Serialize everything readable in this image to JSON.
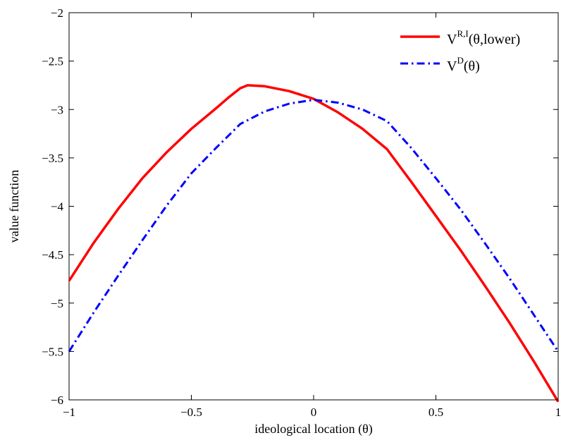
{
  "chart_data": {
    "type": "line",
    "title": "",
    "xlabel": "ideological location (θ)",
    "ylabel": "value function",
    "xlim": [
      -1,
      1
    ],
    "ylim": [
      -6,
      -2
    ],
    "xticks": [
      -1,
      -0.5,
      0,
      0.5,
      1
    ],
    "xtick_labels": [
      "−1",
      "−0.5",
      "0",
      "0.5",
      "1"
    ],
    "yticks": [
      -6,
      -5.5,
      -5,
      -4.5,
      -4,
      -3.5,
      -3,
      -2.5,
      -2
    ],
    "ytick_labels": [
      "−6",
      "−5.5",
      "−5",
      "−4.5",
      "−4",
      "−3.5",
      "−3",
      "−2.5",
      "−2"
    ],
    "grid": false,
    "legend_position": "top-right",
    "series": [
      {
        "name": "V^{R,I}(θ,lower)",
        "legend_base": "V",
        "legend_sup": "R,I",
        "legend_tail": "(θ,lower)",
        "color": "#ff0000",
        "style": "solid",
        "x": [
          -1,
          -0.9,
          -0.8,
          -0.7,
          -0.6,
          -0.5,
          -0.4,
          -0.35,
          -0.3,
          -0.27,
          -0.2,
          -0.1,
          0,
          0.1,
          0.2,
          0.3,
          0.4,
          0.5,
          0.6,
          0.7,
          0.8,
          0.9,
          1
        ],
        "y": [
          -4.77,
          -4.38,
          -4.03,
          -3.71,
          -3.44,
          -3.2,
          -2.99,
          -2.88,
          -2.78,
          -2.75,
          -2.76,
          -2.81,
          -2.89,
          -3.03,
          -3.2,
          -3.41,
          -3.75,
          -4.1,
          -4.45,
          -4.82,
          -5.2,
          -5.6,
          -6.02
        ]
      },
      {
        "name": "V^D(θ)",
        "legend_base": "V",
        "legend_sup": "D",
        "legend_tail": "(θ)",
        "color": "#0000ff",
        "style": "dashdot",
        "x": [
          -1,
          -0.9,
          -0.8,
          -0.7,
          -0.6,
          -0.5,
          -0.4,
          -0.3,
          -0.2,
          -0.1,
          0,
          0.1,
          0.2,
          0.3,
          0.4,
          0.5,
          0.6,
          0.7,
          0.8,
          0.9,
          1
        ],
        "y": [
          -5.5,
          -5.1,
          -4.72,
          -4.35,
          -3.99,
          -3.66,
          -3.4,
          -3.15,
          -3.02,
          -2.94,
          -2.9,
          -2.93,
          -3.0,
          -3.12,
          -3.4,
          -3.71,
          -4.03,
          -4.38,
          -4.74,
          -5.12,
          -5.5
        ]
      }
    ]
  }
}
